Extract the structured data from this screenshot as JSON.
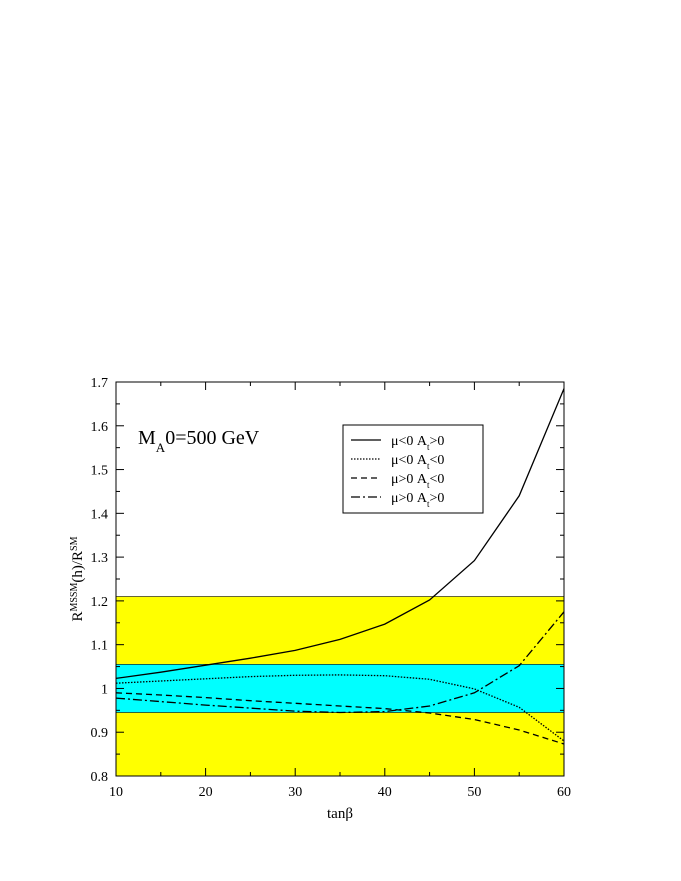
{
  "chart_data": {
    "type": "line",
    "title": "",
    "annotation": {
      "main": "M",
      "sub1": "A",
      "sub2": "0",
      "rest": "=500 GeV"
    },
    "xlabel": "tanβ",
    "ylabel": {
      "main": "R",
      "sup1": "MSSM",
      "mid": "(h)/R",
      "sup2": "SM"
    },
    "xlim": [
      10,
      60
    ],
    "ylim": [
      0.8,
      1.7
    ],
    "xticks": [
      10,
      20,
      30,
      40,
      50,
      60
    ],
    "yticks": [
      0.8,
      0.9,
      1,
      1.1,
      1.2,
      1.3,
      1.4,
      1.5,
      1.6,
      1.7
    ],
    "ytick_labels": [
      "0.8",
      "0.9",
      "1",
      "1.1",
      "1.2",
      "1.3",
      "1.4",
      "1.5",
      "1.6",
      "1.7"
    ],
    "bands": [
      {
        "y": [
          0.8,
          1.21
        ],
        "color": "#ffff00"
      },
      {
        "y": [
          0.945,
          1.055
        ],
        "color": "#00ffff"
      }
    ],
    "legend_position": "top-right",
    "series": [
      {
        "name": "μ<0 A>0",
        "label": {
          "mu": "μ<0 A",
          "sub": "t",
          "cond": ">0"
        },
        "dash": "solid",
        "x": [
          10,
          15,
          20,
          25,
          30,
          35,
          40,
          45,
          50,
          55,
          60
        ],
        "y": [
          1.023,
          1.037,
          1.053,
          1.069,
          1.087,
          1.112,
          1.147,
          1.202,
          1.292,
          1.44,
          1.685
        ]
      },
      {
        "name": "μ<0 A<0",
        "label": {
          "mu": "μ<0 A",
          "sub": "t",
          "cond": "<0"
        },
        "dash": "dotted",
        "x": [
          10,
          15,
          20,
          25,
          30,
          35,
          40,
          45,
          50,
          55,
          60
        ],
        "y": [
          1.012,
          1.017,
          1.022,
          1.027,
          1.03,
          1.031,
          1.029,
          1.021,
          0.999,
          0.957,
          0.88
        ]
      },
      {
        "name": "μ>0 A<0",
        "label": {
          "mu": "μ>0 A",
          "sub": "t",
          "cond": "<0"
        },
        "dash": "dashed",
        "x": [
          10,
          15,
          20,
          25,
          30,
          35,
          40,
          45,
          50,
          55,
          60
        ],
        "y": [
          0.99,
          0.985,
          0.979,
          0.972,
          0.966,
          0.96,
          0.954,
          0.944,
          0.929,
          0.905,
          0.873
        ]
      },
      {
        "name": "μ>0 A>0",
        "label": {
          "mu": "μ>0 A",
          "sub": "t",
          "cond": ">0"
        },
        "dash": "dashdot",
        "x": [
          10,
          15,
          20,
          25,
          30,
          35,
          40,
          45,
          50,
          55,
          60
        ],
        "y": [
          0.978,
          0.97,
          0.962,
          0.955,
          0.948,
          0.945,
          0.947,
          0.96,
          0.99,
          1.052,
          1.175
        ]
      }
    ]
  }
}
